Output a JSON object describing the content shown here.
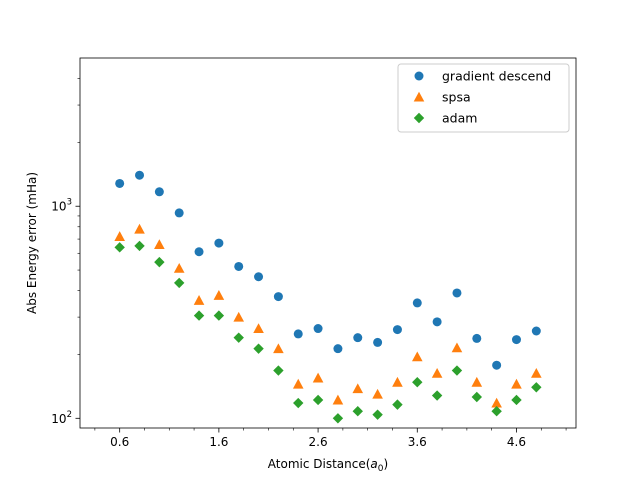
{
  "chart_data": {
    "type": "scatter",
    "title": "",
    "xlabel": "Atomic Distance",
    "xlabel_sub": "0",
    "xlabel_var": "a",
    "ylabel": "Abs Energy error (mHa)",
    "yscale": "log",
    "xlim": [
      0.2,
      5.2
    ],
    "ylim": [
      90,
      5000
    ],
    "grid": false,
    "legend_position": "top-right",
    "x_ticks": [
      0.6,
      1.6,
      2.6,
      3.6,
      4.6
    ],
    "x_tick_labels": [
      "0.6",
      "1.6",
      "2.6",
      "3.6",
      "4.6"
    ],
    "x_minor_ticks": [
      0.35,
      0.85,
      1.1,
      1.35,
      1.85,
      2.1,
      2.35,
      2.85,
      3.1,
      3.35,
      3.85,
      4.1,
      4.35,
      4.85,
      5.1
    ],
    "y_ticks": [
      100,
      1000
    ],
    "y_tick_labels": [
      {
        "base": "10",
        "exp": "2"
      },
      {
        "base": "10",
        "exp": "3"
      }
    ],
    "x": [
      0.6,
      0.8,
      1.0,
      1.2,
      1.4,
      1.6,
      1.8,
      2.0,
      2.2,
      2.4,
      2.6,
      2.8,
      3.0,
      3.2,
      3.4,
      3.6,
      3.8,
      4.0,
      4.2,
      4.4,
      4.6,
      4.8
    ],
    "series": [
      {
        "name": "gradient descend",
        "marker": "circle",
        "color": "#1f77b4",
        "values": [
          1280,
          1400,
          1170,
          930,
          610,
          670,
          520,
          465,
          375,
          250,
          265,
          213,
          240,
          228,
          262,
          350,
          285,
          390,
          238,
          178,
          235,
          258
        ]
      },
      {
        "name": "spsa",
        "marker": "triangle",
        "color": "#ff7f0e",
        "values": [
          720,
          780,
          660,
          510,
          360,
          380,
          300,
          265,
          213,
          145,
          155,
          122,
          138,
          130,
          148,
          195,
          163,
          215,
          148,
          118,
          145,
          163
        ]
      },
      {
        "name": "adam",
        "marker": "diamond",
        "color": "#2ca02c",
        "values": [
          640,
          650,
          545,
          435,
          305,
          305,
          240,
          213,
          168,
          118,
          122,
          100,
          108,
          104,
          116,
          148,
          128,
          168,
          126,
          108,
          122,
          140
        ]
      }
    ]
  }
}
